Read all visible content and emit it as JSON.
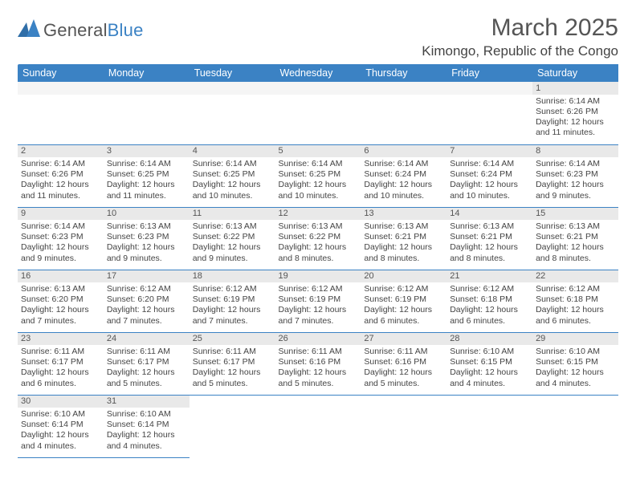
{
  "brand": {
    "name_a": "General",
    "name_b": "Blue"
  },
  "title": "March 2025",
  "location": "Kimongo, Republic of the Congo",
  "colors": {
    "header_bg": "#3b82c4",
    "header_fg": "#ffffff",
    "daynum_bg": "#e9e9e9",
    "rule": "#3b82c4"
  },
  "weekdays": [
    "Sunday",
    "Monday",
    "Tuesday",
    "Wednesday",
    "Thursday",
    "Friday",
    "Saturday"
  ],
  "grid": [
    [
      {
        "empty": true
      },
      {
        "empty": true
      },
      {
        "empty": true
      },
      {
        "empty": true
      },
      {
        "empty": true
      },
      {
        "empty": true
      },
      {
        "n": "1",
        "sr": "Sunrise: 6:14 AM",
        "ss": "Sunset: 6:26 PM",
        "dl": "Daylight: 12 hours and 11 minutes."
      }
    ],
    [
      {
        "n": "2",
        "sr": "Sunrise: 6:14 AM",
        "ss": "Sunset: 6:26 PM",
        "dl": "Daylight: 12 hours and 11 minutes."
      },
      {
        "n": "3",
        "sr": "Sunrise: 6:14 AM",
        "ss": "Sunset: 6:25 PM",
        "dl": "Daylight: 12 hours and 11 minutes."
      },
      {
        "n": "4",
        "sr": "Sunrise: 6:14 AM",
        "ss": "Sunset: 6:25 PM",
        "dl": "Daylight: 12 hours and 10 minutes."
      },
      {
        "n": "5",
        "sr": "Sunrise: 6:14 AM",
        "ss": "Sunset: 6:25 PM",
        "dl": "Daylight: 12 hours and 10 minutes."
      },
      {
        "n": "6",
        "sr": "Sunrise: 6:14 AM",
        "ss": "Sunset: 6:24 PM",
        "dl": "Daylight: 12 hours and 10 minutes."
      },
      {
        "n": "7",
        "sr": "Sunrise: 6:14 AM",
        "ss": "Sunset: 6:24 PM",
        "dl": "Daylight: 12 hours and 10 minutes."
      },
      {
        "n": "8",
        "sr": "Sunrise: 6:14 AM",
        "ss": "Sunset: 6:23 PM",
        "dl": "Daylight: 12 hours and 9 minutes."
      }
    ],
    [
      {
        "n": "9",
        "sr": "Sunrise: 6:14 AM",
        "ss": "Sunset: 6:23 PM",
        "dl": "Daylight: 12 hours and 9 minutes."
      },
      {
        "n": "10",
        "sr": "Sunrise: 6:13 AM",
        "ss": "Sunset: 6:23 PM",
        "dl": "Daylight: 12 hours and 9 minutes."
      },
      {
        "n": "11",
        "sr": "Sunrise: 6:13 AM",
        "ss": "Sunset: 6:22 PM",
        "dl": "Daylight: 12 hours and 9 minutes."
      },
      {
        "n": "12",
        "sr": "Sunrise: 6:13 AM",
        "ss": "Sunset: 6:22 PM",
        "dl": "Daylight: 12 hours and 8 minutes."
      },
      {
        "n": "13",
        "sr": "Sunrise: 6:13 AM",
        "ss": "Sunset: 6:21 PM",
        "dl": "Daylight: 12 hours and 8 minutes."
      },
      {
        "n": "14",
        "sr": "Sunrise: 6:13 AM",
        "ss": "Sunset: 6:21 PM",
        "dl": "Daylight: 12 hours and 8 minutes."
      },
      {
        "n": "15",
        "sr": "Sunrise: 6:13 AM",
        "ss": "Sunset: 6:21 PM",
        "dl": "Daylight: 12 hours and 8 minutes."
      }
    ],
    [
      {
        "n": "16",
        "sr": "Sunrise: 6:13 AM",
        "ss": "Sunset: 6:20 PM",
        "dl": "Daylight: 12 hours and 7 minutes."
      },
      {
        "n": "17",
        "sr": "Sunrise: 6:12 AM",
        "ss": "Sunset: 6:20 PM",
        "dl": "Daylight: 12 hours and 7 minutes."
      },
      {
        "n": "18",
        "sr": "Sunrise: 6:12 AM",
        "ss": "Sunset: 6:19 PM",
        "dl": "Daylight: 12 hours and 7 minutes."
      },
      {
        "n": "19",
        "sr": "Sunrise: 6:12 AM",
        "ss": "Sunset: 6:19 PM",
        "dl": "Daylight: 12 hours and 7 minutes."
      },
      {
        "n": "20",
        "sr": "Sunrise: 6:12 AM",
        "ss": "Sunset: 6:19 PM",
        "dl": "Daylight: 12 hours and 6 minutes."
      },
      {
        "n": "21",
        "sr": "Sunrise: 6:12 AM",
        "ss": "Sunset: 6:18 PM",
        "dl": "Daylight: 12 hours and 6 minutes."
      },
      {
        "n": "22",
        "sr": "Sunrise: 6:12 AM",
        "ss": "Sunset: 6:18 PM",
        "dl": "Daylight: 12 hours and 6 minutes."
      }
    ],
    [
      {
        "n": "23",
        "sr": "Sunrise: 6:11 AM",
        "ss": "Sunset: 6:17 PM",
        "dl": "Daylight: 12 hours and 6 minutes."
      },
      {
        "n": "24",
        "sr": "Sunrise: 6:11 AM",
        "ss": "Sunset: 6:17 PM",
        "dl": "Daylight: 12 hours and 5 minutes."
      },
      {
        "n": "25",
        "sr": "Sunrise: 6:11 AM",
        "ss": "Sunset: 6:17 PM",
        "dl": "Daylight: 12 hours and 5 minutes."
      },
      {
        "n": "26",
        "sr": "Sunrise: 6:11 AM",
        "ss": "Sunset: 6:16 PM",
        "dl": "Daylight: 12 hours and 5 minutes."
      },
      {
        "n": "27",
        "sr": "Sunrise: 6:11 AM",
        "ss": "Sunset: 6:16 PM",
        "dl": "Daylight: 12 hours and 5 minutes."
      },
      {
        "n": "28",
        "sr": "Sunrise: 6:10 AM",
        "ss": "Sunset: 6:15 PM",
        "dl": "Daylight: 12 hours and 4 minutes."
      },
      {
        "n": "29",
        "sr": "Sunrise: 6:10 AM",
        "ss": "Sunset: 6:15 PM",
        "dl": "Daylight: 12 hours and 4 minutes."
      }
    ],
    [
      {
        "n": "30",
        "sr": "Sunrise: 6:10 AM",
        "ss": "Sunset: 6:14 PM",
        "dl": "Daylight: 12 hours and 4 minutes."
      },
      {
        "n": "31",
        "sr": "Sunrise: 6:10 AM",
        "ss": "Sunset: 6:14 PM",
        "dl": "Daylight: 12 hours and 4 minutes."
      },
      {
        "blank": true
      },
      {
        "blank": true
      },
      {
        "blank": true
      },
      {
        "blank": true
      },
      {
        "blank": true
      }
    ]
  ]
}
